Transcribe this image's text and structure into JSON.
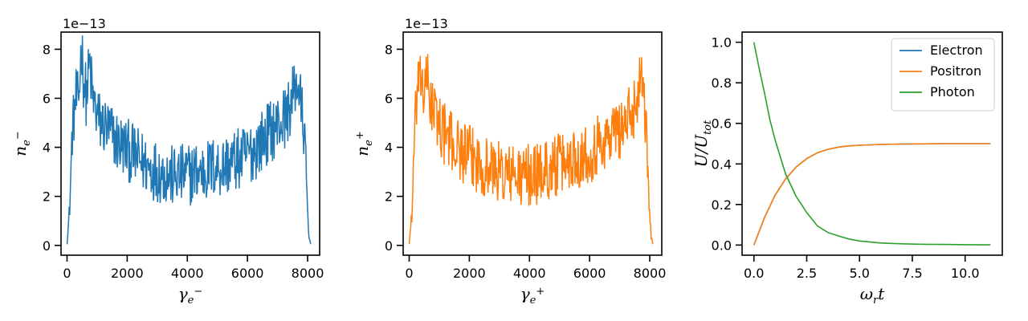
{
  "chart_data": [
    {
      "type": "line",
      "title": "",
      "xlabel": "γ",
      "xlabel_sub": "e",
      "xlabel_sup": "−",
      "ylabel": "n",
      "ylabel_sub": "e",
      "ylabel_sup": "−",
      "offset_text": "1e−13",
      "xlim": [
        -200,
        8400
      ],
      "ylim": [
        -0.4,
        8.7
      ],
      "xticks": [
        0,
        2000,
        4000,
        6000,
        8000
      ],
      "xtick_labels": [
        "0",
        "2000",
        "4000",
        "6000",
        "8000"
      ],
      "yticks": [
        0,
        2,
        4,
        6,
        8
      ],
      "ytick_labels": [
        "0",
        "2",
        "4",
        "6",
        "8"
      ],
      "grid": false,
      "series": [
        {
          "color": "#1f77b4",
          "x": [
            0,
            100,
            150,
            200,
            250,
            300,
            350,
            400,
            450,
            480,
            550,
            650,
            750,
            850,
            950,
            1100,
            1300,
            1500,
            1700,
            1900,
            2100,
            2300,
            2500,
            2700,
            2900,
            3100,
            3300,
            3500,
            3700,
            3900,
            4100,
            4300,
            4500,
            4700,
            4900,
            5100,
            5300,
            5500,
            5700,
            5900,
            6100,
            6300,
            6500,
            6700,
            6900,
            7100,
            7300,
            7500,
            7650,
            7800,
            7900,
            7950,
            8000,
            8050,
            8100
          ],
          "y": [
            0.05,
            1.8,
            4.0,
            5.0,
            5.5,
            6.0,
            5.8,
            6.2,
            7.5,
            8.3,
            6.8,
            6.0,
            7.5,
            6.0,
            5.5,
            5.0,
            4.8,
            4.5,
            4.2,
            4.0,
            3.8,
            3.6,
            3.4,
            3.2,
            3.1,
            3.0,
            2.9,
            2.8,
            2.8,
            2.9,
            2.9,
            3.0,
            3.0,
            3.1,
            3.2,
            3.2,
            3.3,
            3.4,
            3.5,
            3.6,
            3.8,
            4.0,
            4.3,
            4.6,
            4.8,
            5.0,
            5.3,
            6.0,
            6.8,
            5.5,
            4.5,
            3.0,
            1.2,
            0.3,
            0.05
          ],
          "noise_amplitude": 1.3
        }
      ]
    },
    {
      "type": "line",
      "title": "",
      "xlabel": "γ",
      "xlabel_sub": "e",
      "xlabel_sup": "+",
      "ylabel": "n",
      "ylabel_sub": "e",
      "ylabel_sup": "+",
      "offset_text": "1e−13",
      "xlim": [
        -200,
        8400
      ],
      "ylim": [
        -0.4,
        8.7
      ],
      "xticks": [
        0,
        2000,
        4000,
        6000,
        8000
      ],
      "xtick_labels": [
        "0",
        "2000",
        "4000",
        "6000",
        "8000"
      ],
      "yticks": [
        0,
        2,
        4,
        6,
        8
      ],
      "ytick_labels": [
        "0",
        "2",
        "4",
        "6",
        "8"
      ],
      "grid": false,
      "series": [
        {
          "color": "#ff7f0e",
          "x": [
            0,
            100,
            150,
            200,
            250,
            300,
            350,
            400,
            450,
            500,
            600,
            700,
            800,
            900,
            1000,
            1200,
            1400,
            1600,
            1800,
            2000,
            2200,
            2400,
            2600,
            2800,
            3000,
            3200,
            3400,
            3600,
            3800,
            4000,
            4200,
            4400,
            4600,
            4800,
            5000,
            5200,
            5400,
            5600,
            5800,
            6000,
            6200,
            6400,
            6600,
            6800,
            7000,
            7200,
            7400,
            7600,
            7750,
            7850,
            7950,
            8000,
            8050,
            8100
          ],
          "y": [
            0.05,
            1.5,
            3.5,
            5.0,
            6.0,
            6.8,
            6.0,
            7.2,
            6.5,
            6.0,
            6.8,
            6.0,
            5.5,
            5.2,
            5.0,
            4.5,
            4.2,
            4.0,
            3.8,
            3.6,
            3.5,
            3.3,
            3.2,
            3.1,
            3.0,
            2.9,
            2.9,
            2.8,
            2.8,
            2.9,
            2.9,
            3.0,
            3.1,
            3.2,
            3.3,
            3.4,
            3.5,
            3.6,
            3.7,
            3.8,
            4.0,
            4.2,
            4.4,
            4.6,
            4.8,
            5.0,
            5.3,
            6.2,
            7.3,
            5.5,
            3.0,
            1.2,
            0.3,
            0.05
          ],
          "noise_amplitude": 1.3
        }
      ]
    },
    {
      "type": "line",
      "title": "",
      "xlabel": "ω",
      "xlabel_sub": "r",
      "xlabel_tail": "t",
      "ylabel": "U/U",
      "ylabel_sub": "tot",
      "xlim": [
        -0.56,
        11.76
      ],
      "ylim": [
        -0.05,
        1.05
      ],
      "xticks": [
        0,
        2.5,
        5,
        7.5,
        10
      ],
      "xtick_labels": [
        "0.0",
        "2.5",
        "5.0",
        "7.5",
        "10.0"
      ],
      "yticks": [
        0,
        0.2,
        0.4,
        0.6,
        0.8,
        1.0
      ],
      "ytick_labels": [
        "0.0",
        "0.2",
        "0.4",
        "0.6",
        "0.8",
        "1.0"
      ],
      "grid": false,
      "legend_placement": "upper-right",
      "series": [
        {
          "name": "Electron",
          "color": "#1f77b4",
          "x": [
            0,
            0.5,
            1,
            1.5,
            2,
            2.5,
            3,
            3.5,
            4,
            4.5,
            5,
            6,
            7,
            8,
            9,
            10,
            11.2
          ],
          "y": [
            0.0,
            0.135,
            0.245,
            0.326,
            0.385,
            0.426,
            0.455,
            0.472,
            0.483,
            0.489,
            0.492,
            0.496,
            0.498,
            0.499,
            0.5,
            0.5,
            0.5
          ]
        },
        {
          "name": "Positron",
          "color": "#ff7f0e",
          "x": [
            0,
            0.5,
            1,
            1.5,
            2,
            2.5,
            3,
            3.5,
            4,
            4.5,
            5,
            6,
            7,
            8,
            9,
            10,
            11.2
          ],
          "y": [
            0.0,
            0.135,
            0.245,
            0.326,
            0.385,
            0.426,
            0.455,
            0.472,
            0.483,
            0.489,
            0.492,
            0.496,
            0.498,
            0.499,
            0.5,
            0.5,
            0.5
          ]
        },
        {
          "name": "Photon",
          "color": "#2ca02c",
          "x": [
            0,
            0.25,
            0.5,
            0.75,
            1,
            1.5,
            2,
            2.5,
            3,
            3.5,
            4,
            4.5,
            5,
            6,
            7,
            8,
            9,
            10,
            11.2
          ],
          "y": [
            1.0,
            0.87,
            0.75,
            0.62,
            0.52,
            0.35,
            0.24,
            0.16,
            0.095,
            0.062,
            0.045,
            0.03,
            0.02,
            0.01,
            0.006,
            0.004,
            0.003,
            0.002,
            0.001
          ]
        }
      ]
    }
  ]
}
